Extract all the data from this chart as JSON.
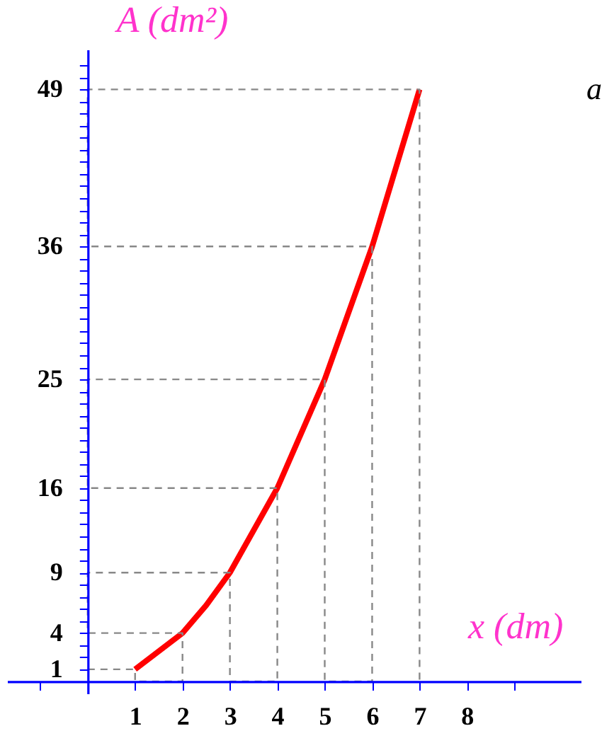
{
  "chart_data": {
    "type": "line",
    "xlabel": "x (dm)",
    "ylabel": "A (dm²)",
    "x": [
      1,
      2,
      2.5,
      3,
      4,
      5,
      6,
      7
    ],
    "series": [
      {
        "color": "#ff0000",
        "values": [
          1,
          4,
          6.3,
          9,
          16,
          25,
          36,
          49
        ]
      },
      {
        "type": "line",
        "line_style": "dashed",
        "color": "#888888",
        "x": [
          0,
          1,
          1,
          2,
          2,
          0,
          0,
          3,
          3,
          4,
          4,
          0,
          0,
          5,
          5,
          6,
          6,
          0,
          0,
          7,
          7
        ],
        "values": [
          1,
          1,
          0,
          0,
          4,
          4,
          9,
          9,
          0,
          0,
          16,
          16,
          25,
          25,
          0,
          0,
          36,
          36,
          49,
          49,
          0
        ]
      }
    ],
    "xlim": [
      -1.7,
      10.4
    ],
    "ylim": [
      -1,
      52.3
    ],
    "xticks": [
      {
        "value": -1,
        "label": null
      },
      1,
      2,
      3,
      4,
      5,
      6,
      7,
      8,
      {
        "value": 9,
        "label": null
      }
    ],
    "yticks": [
      1,
      {
        "value": 2,
        "label": null
      },
      {
        "value": 3,
        "label": null
      },
      4,
      {
        "value": 5,
        "label": null
      },
      {
        "value": 6,
        "label": null
      },
      {
        "value": 7,
        "label": null
      },
      {
        "value": 8,
        "label": null
      },
      9,
      {
        "value": 10,
        "label": null
      },
      {
        "value": 11,
        "label": null
      },
      {
        "value": 12,
        "label": null
      },
      {
        "value": 13,
        "label": null
      },
      {
        "value": 14,
        "label": null
      },
      {
        "value": 15,
        "label": null
      },
      16,
      {
        "value": 17,
        "label": null
      },
      {
        "value": 18,
        "label": null
      },
      {
        "value": 19,
        "label": null
      },
      {
        "value": 20,
        "label": null
      },
      {
        "value": 21,
        "label": null
      },
      {
        "value": 22,
        "label": null
      },
      {
        "value": 23,
        "label": null
      },
      {
        "value": 24,
        "label": null
      },
      25,
      {
        "value": 26,
        "label": null
      },
      {
        "value": 27,
        "label": null
      },
      {
        "value": 28,
        "label": null
      },
      {
        "value": 29,
        "label": null
      },
      {
        "value": 30,
        "label": null
      },
      {
        "value": 31,
        "label": null
      },
      {
        "value": 32,
        "label": null
      },
      {
        "value": 33,
        "label": null
      },
      {
        "value": 34,
        "label": null
      },
      {
        "value": 35,
        "label": null
      },
      36,
      {
        "value": 37,
        "label": null
      },
      {
        "value": 38,
        "label": null
      },
      {
        "value": 39,
        "label": null
      },
      {
        "value": 40,
        "label": null
      },
      {
        "value": 41,
        "label": null
      },
      {
        "value": 42,
        "label": null
      },
      {
        "value": 43,
        "label": null
      },
      {
        "value": 44,
        "label": null
      },
      {
        "value": 45,
        "label": null
      },
      {
        "value": 46,
        "label": null
      },
      {
        "value": 47,
        "label": null
      },
      {
        "value": 48,
        "label": null
      },
      49,
      {
        "value": 50,
        "label": null
      },
      {
        "value": 51,
        "label": null
      }
    ],
    "annotations": [
      "a"
    ],
    "grid": false,
    "marker": "none",
    "line_style": "solid"
  }
}
